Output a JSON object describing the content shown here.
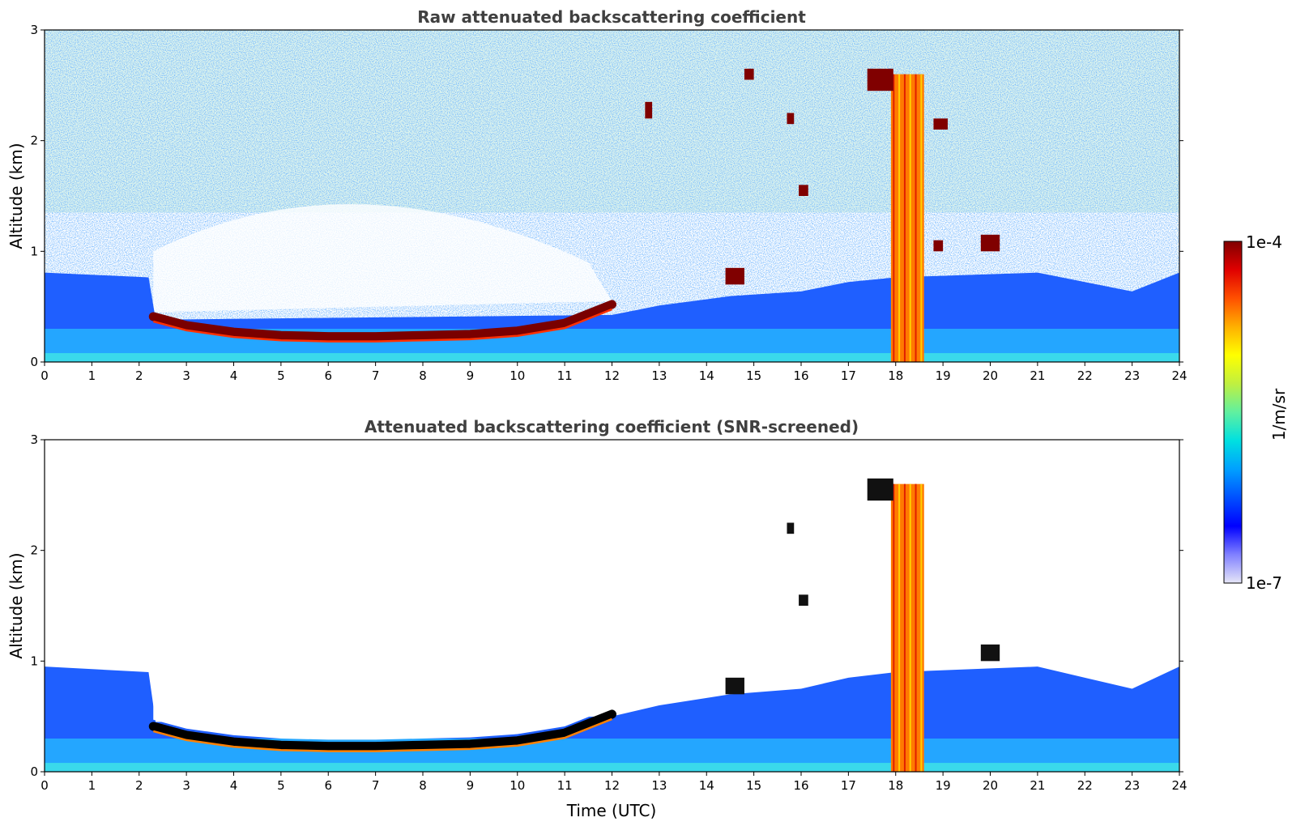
{
  "chart_data": [
    {
      "type": "heatmap",
      "title": "Raw attenuated backscattering coefficient",
      "xlabel": "",
      "ylabel": "Altitude (km)",
      "xlim": [
        0,
        24
      ],
      "ylim": [
        0,
        3
      ],
      "x_ticks": [
        0,
        1,
        2,
        3,
        4,
        5,
        6,
        7,
        8,
        9,
        10,
        11,
        12,
        13,
        14,
        15,
        16,
        17,
        18,
        19,
        20,
        21,
        22,
        23,
        24
      ],
      "y_ticks": [
        0,
        1,
        2,
        3
      ],
      "cloud_base_km": [
        {
          "t": 2.3,
          "z": 0.41
        },
        {
          "t": 3,
          "z": 0.33
        },
        {
          "t": 4,
          "z": 0.27
        },
        {
          "t": 5,
          "z": 0.24
        },
        {
          "t": 6,
          "z": 0.23
        },
        {
          "t": 7,
          "z": 0.23
        },
        {
          "t": 8,
          "z": 0.24
        },
        {
          "t": 9,
          "z": 0.25
        },
        {
          "t": 10,
          "z": 0.28
        },
        {
          "t": 11,
          "z": 0.35
        },
        {
          "t": 12,
          "z": 0.52
        }
      ],
      "features": [
        {
          "t0": 17.9,
          "t1": 18.6,
          "z0": 0.0,
          "z1": 2.6,
          "level": "high"
        },
        {
          "t0": 14.4,
          "t1": 14.8,
          "z0": 0.7,
          "z1": 0.85,
          "level": "max"
        },
        {
          "t0": 14.8,
          "t1": 15.0,
          "z0": 2.55,
          "z1": 2.65,
          "level": "max"
        },
        {
          "t0": 12.7,
          "t1": 12.85,
          "z0": 2.2,
          "z1": 2.35,
          "level": "max"
        },
        {
          "t0": 15.7,
          "t1": 15.85,
          "z0": 2.15,
          "z1": 2.25,
          "level": "max"
        },
        {
          "t0": 15.95,
          "t1": 16.15,
          "z0": 1.5,
          "z1": 1.6,
          "level": "max"
        },
        {
          "t0": 17.4,
          "t1": 17.95,
          "z0": 2.45,
          "z1": 2.65,
          "level": "max"
        },
        {
          "t0": 18.8,
          "t1": 19.1,
          "z0": 2.1,
          "z1": 2.2,
          "level": "max"
        },
        {
          "t0": 18.8,
          "t1": 19.0,
          "z0": 1.0,
          "z1": 1.1,
          "level": "max"
        },
        {
          "t0": 19.8,
          "t1": 20.2,
          "z0": 1.0,
          "z1": 1.15,
          "level": "max"
        }
      ]
    },
    {
      "type": "heatmap",
      "title": "Attenuated backscattering coefficient (SNR-screened)",
      "xlabel": "Time (UTC)",
      "ylabel": "Altitude (km)",
      "xlim": [
        0,
        24
      ],
      "ylim": [
        0,
        3
      ],
      "x_ticks": [
        0,
        1,
        2,
        3,
        4,
        5,
        6,
        7,
        8,
        9,
        10,
        11,
        12,
        13,
        14,
        15,
        16,
        17,
        18,
        19,
        20,
        21,
        22,
        23,
        24
      ],
      "y_ticks": [
        0,
        1,
        2,
        3
      ],
      "cloud_base_km": [
        {
          "t": 2.3,
          "z": 0.41
        },
        {
          "t": 3,
          "z": 0.33
        },
        {
          "t": 4,
          "z": 0.27
        },
        {
          "t": 5,
          "z": 0.24
        },
        {
          "t": 6,
          "z": 0.23
        },
        {
          "t": 7,
          "z": 0.23
        },
        {
          "t": 8,
          "z": 0.24
        },
        {
          "t": 9,
          "z": 0.25
        },
        {
          "t": 10,
          "z": 0.28
        },
        {
          "t": 11,
          "z": 0.35
        },
        {
          "t": 12,
          "z": 0.52
        }
      ],
      "features": [
        {
          "t0": 17.9,
          "t1": 18.6,
          "z0": 0.0,
          "z1": 2.6,
          "level": "high"
        },
        {
          "t0": 14.4,
          "t1": 14.8,
          "z0": 0.7,
          "z1": 0.85,
          "level": "clipped"
        },
        {
          "t0": 17.4,
          "t1": 17.95,
          "z0": 2.45,
          "z1": 2.65,
          "level": "clipped"
        },
        {
          "t0": 15.7,
          "t1": 15.85,
          "z0": 2.15,
          "z1": 2.25,
          "level": "clipped"
        },
        {
          "t0": 15.95,
          "t1": 16.15,
          "z0": 1.5,
          "z1": 1.6,
          "level": "clipped"
        },
        {
          "t0": 19.8,
          "t1": 20.2,
          "z0": 1.0,
          "z1": 1.15,
          "level": "clipped"
        }
      ]
    }
  ],
  "colorbar": {
    "min_label": "1e-7",
    "max_label": "1e-4",
    "unit": "1/m/sr",
    "colors": [
      "#e6e6f7",
      "#8080ff",
      "#0000ff",
      "#0050ff",
      "#00a0ff",
      "#00e0e0",
      "#60f0a0",
      "#c0f040",
      "#ffff00",
      "#ffb000",
      "#ff5000",
      "#e00000",
      "#800000"
    ]
  }
}
